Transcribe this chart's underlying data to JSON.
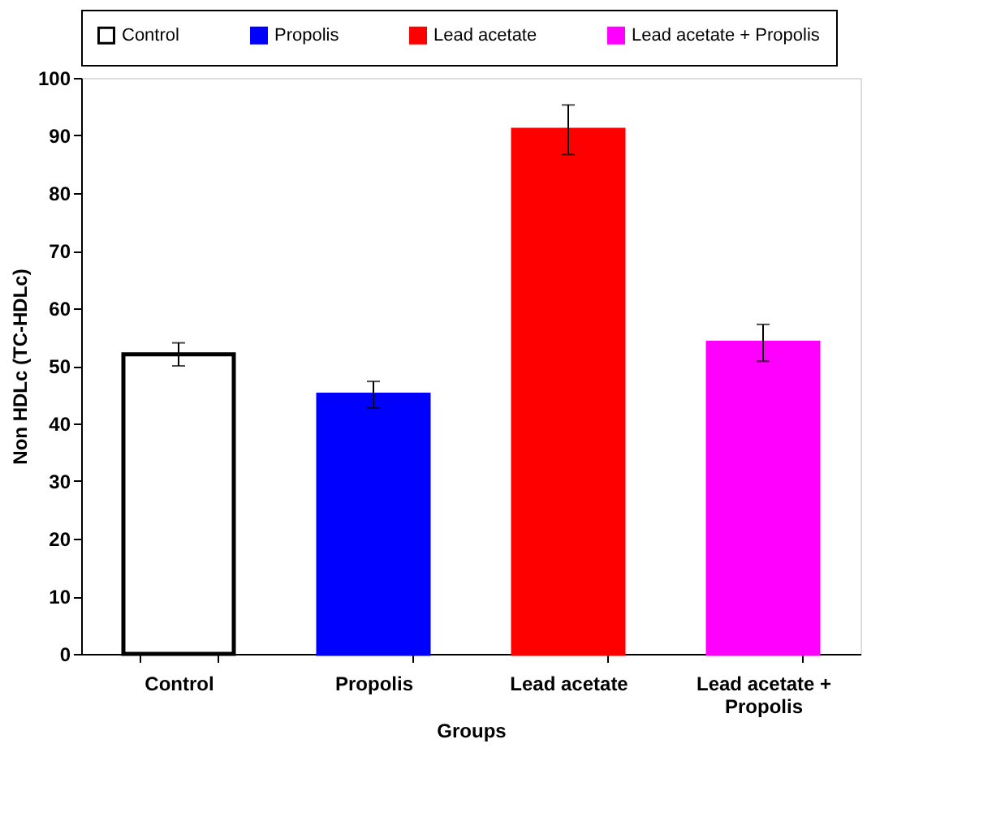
{
  "chart_data": {
    "type": "bar",
    "xlabel": "Groups",
    "ylabel": "Non HDLc (TC-HDLc)",
    "categories": [
      "Control",
      "Propolis",
      "Lead acetate",
      "Lead acetate + Propolis"
    ],
    "series": [
      {
        "name": "Control",
        "color": "#ffffff",
        "values": [
          52,
          null,
          null,
          null
        ],
        "errors": [
          2,
          null,
          null,
          null
        ]
      },
      {
        "name": "Propolis",
        "color": "#0000ff",
        "values": [
          null,
          45,
          null,
          null
        ],
        "errors": [
          null,
          2.3,
          null,
          null
        ]
      },
      {
        "name": "Lead acetate",
        "color": "#ff0000",
        "values": [
          null,
          null,
          91,
          null
        ],
        "errors": [
          null,
          null,
          4.3,
          null
        ]
      },
      {
        "name": "Lead acetate + Propolis",
        "color": "#ff00ff",
        "values": [
          null,
          null,
          null,
          54
        ],
        "errors": [
          null,
          null,
          null,
          3.2
        ]
      }
    ],
    "ylim": [
      0,
      100
    ],
    "yticks": [
      0,
      10,
      20,
      30,
      40,
      50,
      60,
      70,
      80,
      90,
      100
    ],
    "grid": false,
    "legend": "top"
  }
}
